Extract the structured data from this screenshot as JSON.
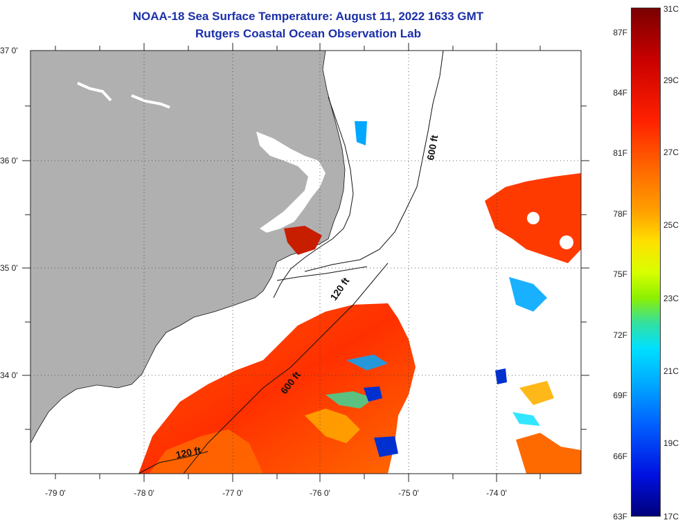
{
  "header": {
    "title": "NOAA-18 Sea Surface Temperature:  August 11, 2022 1633 GMT",
    "subtitle": "Rutgers Coastal Ocean Observation Lab"
  },
  "map": {
    "lon_range": [
      -79.3,
      -73.0
    ],
    "lat_range": [
      33.1,
      37.0
    ],
    "lon_labels": [
      "-79 0'",
      "-78 0'",
      "-77 0'",
      "-76 0'",
      "-75 0'",
      "-74 0'"
    ],
    "lat_labels": [
      "37 0'",
      "36 0'",
      "35 0'",
      "34 0'"
    ],
    "contours": [
      "600 ft",
      "120 ft",
      "600 ft",
      "120 ft"
    ],
    "colors": {
      "land": "#b0b0b0",
      "ocean_nodata": "#ffffff",
      "warm": "#ff3c00",
      "cool": "#00a0ff"
    }
  },
  "colorbar": {
    "fahrenheit": [
      "87F",
      "84F",
      "81F",
      "78F",
      "75F",
      "72F",
      "69F",
      "66F",
      "63F"
    ],
    "celsius": [
      "31C",
      "29C",
      "27C",
      "25C",
      "23C",
      "21C",
      "19C",
      "17C"
    ]
  }
}
